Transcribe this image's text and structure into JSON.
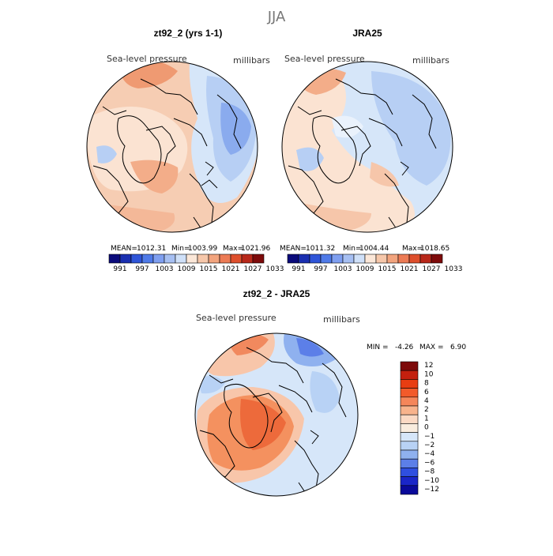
{
  "page_title": "JJA",
  "panels": [
    {
      "id": "model",
      "title": "zt92_2 (yrs 1-1)",
      "left_label": "Sea-level pressure",
      "right_label": "millibars",
      "stats": {
        "mean_label": "MEAN=",
        "mean": "1012.31",
        "min_label": "Min=",
        "min": "1003.99",
        "max_label": "Max=",
        "max": "1021.96"
      }
    },
    {
      "id": "reanalysis",
      "title": "JRA25",
      "left_label": "Sea-level pressure",
      "right_label": "millibars",
      "stats": {
        "mean_label": "MEAN=",
        "mean": "1011.32",
        "min_label": "Min=",
        "min": "1004.44",
        "max_label": "Max=",
        "max": "1018.65"
      }
    },
    {
      "id": "difference",
      "title": "zt92_2 - JRA25",
      "left_label": "Sea-level pressure",
      "right_label": "millibars",
      "stats": {
        "min_label": "MIN =",
        "min": "-4.26",
        "max_label": "MAX =",
        "max": "6.90"
      }
    }
  ],
  "abs_colorbar": {
    "colors": [
      "#0a0a7a",
      "#1a2fb0",
      "#2f55d8",
      "#4f7ae8",
      "#7f9ff0",
      "#a6bff2",
      "#cfe0f8",
      "#fbe7d8",
      "#f6c7aa",
      "#f2a47e",
      "#ec7b55",
      "#de4f2c",
      "#b8281a",
      "#7d0a0a"
    ],
    "tick_labels": [
      "991",
      "997",
      "1003",
      "1009",
      "1015",
      "1021",
      "1027",
      "1033"
    ]
  },
  "diff_colorbar": {
    "colors": [
      "#7d0a0a",
      "#c4200e",
      "#e83d12",
      "#f25a2a",
      "#f5865a",
      "#f8b38c",
      "#fbd9c4",
      "#f9ecde",
      "#d6e6f9",
      "#b8d2f5",
      "#8fb1ef",
      "#5c7fe8",
      "#2f4fe0",
      "#1a26c8",
      "#0a0a9a"
    ],
    "tick_labels": [
      "12",
      "10",
      "8",
      "6",
      "4",
      "2",
      "1",
      "0",
      "−1",
      "−2",
      "−4",
      "−6",
      "−8",
      "−10",
      "−12"
    ]
  }
}
